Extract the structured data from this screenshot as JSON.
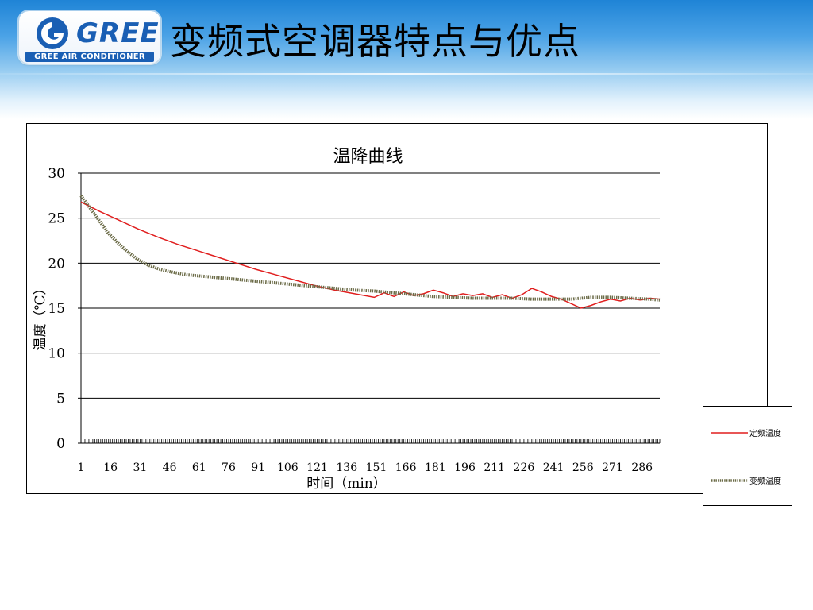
{
  "slide": {
    "logo_brand": "GREE",
    "logo_sub": "GREE AIR CONDITIONER",
    "title": "变频式空调器特点与优点"
  },
  "colors": {
    "header_blue": "#1f84d6",
    "fixed_series": "#e01e1e",
    "inverter_series": "#6b6b47"
  },
  "chart_data": {
    "type": "line",
    "title": "温降曲线",
    "xlabel": "时间（min）",
    "ylabel": "温度（℃）",
    "ylim": [
      0,
      30
    ],
    "yticks": [
      0,
      5,
      10,
      15,
      20,
      25,
      30
    ],
    "xlim": [
      1,
      295
    ],
    "xticks": [
      1,
      16,
      31,
      46,
      61,
      76,
      91,
      106,
      121,
      136,
      151,
      166,
      181,
      196,
      211,
      226,
      241,
      256,
      271,
      286
    ],
    "grid": "horizontal",
    "legend_position": "right",
    "series": [
      {
        "name": "定频温度",
        "color": "#e01e1e",
        "style": "solid",
        "x": [
          1,
          10,
          20,
          30,
          40,
          50,
          60,
          70,
          80,
          90,
          100,
          110,
          120,
          130,
          140,
          150,
          155,
          160,
          165,
          170,
          175,
          180,
          185,
          190,
          195,
          200,
          205,
          210,
          215,
          220,
          225,
          230,
          235,
          240,
          245,
          250,
          255,
          260,
          265,
          270,
          275,
          280,
          285,
          290,
          295
        ],
        "y": [
          26.8,
          25.8,
          24.8,
          23.8,
          22.9,
          22.1,
          21.4,
          20.7,
          20.0,
          19.3,
          18.7,
          18.1,
          17.5,
          17.0,
          16.6,
          16.2,
          16.7,
          16.3,
          16.8,
          16.4,
          16.6,
          17.0,
          16.7,
          16.3,
          16.6,
          16.4,
          16.6,
          16.2,
          16.5,
          16.1,
          16.5,
          17.2,
          16.8,
          16.3,
          16.0,
          15.5,
          15.0,
          15.3,
          15.7,
          16.0,
          15.8,
          16.1,
          15.9,
          16.1,
          16.0
        ]
      },
      {
        "name": "变频温度",
        "color": "#6b6b47",
        "style": "dotted-thick",
        "x": [
          1,
          5,
          10,
          15,
          20,
          25,
          30,
          35,
          40,
          45,
          50,
          55,
          60,
          70,
          80,
          90,
          100,
          110,
          120,
          130,
          140,
          150,
          160,
          170,
          180,
          190,
          200,
          210,
          220,
          230,
          240,
          250,
          260,
          270,
          280,
          290,
          295
        ],
        "y": [
          27.5,
          26.3,
          24.8,
          23.3,
          22.2,
          21.2,
          20.4,
          19.8,
          19.4,
          19.1,
          18.9,
          18.7,
          18.6,
          18.4,
          18.2,
          18.0,
          17.8,
          17.6,
          17.4,
          17.2,
          17.0,
          16.9,
          16.7,
          16.5,
          16.3,
          16.2,
          16.1,
          16.1,
          16.1,
          16.0,
          16.0,
          16.0,
          16.2,
          16.2,
          16.1,
          16.0,
          15.9
        ]
      }
    ]
  }
}
